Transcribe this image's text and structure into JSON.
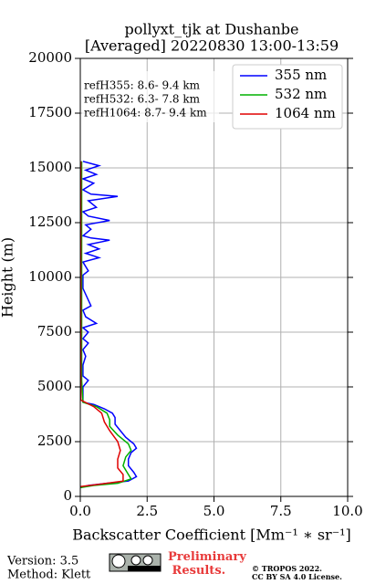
{
  "chart_data": {
    "type": "line",
    "title": "pollyxt_tjk at Dushanbe",
    "subtitle": "[Averaged] 20220830 13:00-13:59",
    "x_label": "Backscatter Coefficient [Mm⁻¹ ∗ sr⁻¹]",
    "y_label": "Height (m)",
    "annotations": [
      "refH355:  8.6- 9.4 km",
      "refH532:  6.3- 7.8 km",
      "refH1064:  8.7- 9.4 km"
    ],
    "xlim": [
      0,
      10
    ],
    "ylim": [
      0,
      20000
    ],
    "xticks": [
      {
        "value": 0,
        "label": "0.0"
      },
      2.5,
      {
        "value": 5,
        "label": "5.0"
      },
      7.5,
      {
        "value": 10,
        "label": "10.0"
      }
    ],
    "yticks": [
      0,
      2500,
      5000,
      7500,
      10000,
      12500,
      15000,
      17500,
      20000
    ],
    "grid": true,
    "legend": "upper right",
    "series": [
      {
        "name": "355 nm",
        "color": "#0000ff",
        "y": [
          15300,
          15100,
          14900,
          14700,
          14500,
          14300,
          14000,
          13800,
          13700,
          13500,
          13200,
          13000,
          12800,
          12600,
          12400,
          12200,
          11900,
          11800,
          11700,
          11500,
          11300,
          11100,
          10900,
          10700,
          10300,
          10100,
          9500,
          8700,
          8500,
          8200,
          7900,
          7700,
          7500,
          7200,
          7000,
          6700,
          6400,
          6000,
          5500,
          5300,
          5000,
          4600,
          4300,
          4200,
          4000,
          3800,
          3600,
          3300,
          3000,
          2700,
          2400,
          2200,
          2000,
          1700,
          1400,
          1100,
          900,
          700,
          600,
          500,
          400
        ],
        "x": [
          0.1,
          0.7,
          0.2,
          0.6,
          0.1,
          0.5,
          0.1,
          0.4,
          1.4,
          0.3,
          0.6,
          0.1,
          0.3,
          1.1,
          0.2,
          0.4,
          0.1,
          0.4,
          1.1,
          0.3,
          0.7,
          0.2,
          0.7,
          0.1,
          0.3,
          0.1,
          0.1,
          0.4,
          0.1,
          0.2,
          0.6,
          0.1,
          0.3,
          0.1,
          0.3,
          0.1,
          0.2,
          0.1,
          0.1,
          0.3,
          0.1,
          0.1,
          0.1,
          0.5,
          0.9,
          1.2,
          1.3,
          1.3,
          1.5,
          1.7,
          2.0,
          2.1,
          1.9,
          1.8,
          1.8,
          2.0,
          2.1,
          1.8,
          1.0,
          0.3,
          0
        ]
      },
      {
        "name": "532 nm",
        "color": "#00b000",
        "y": [
          15300,
          10000,
          5300,
          4300,
          4100,
          3800,
          3500,
          3200,
          2800,
          2400,
          2100,
          1800,
          1400,
          1000,
          800,
          600,
          500,
          400
        ],
        "x": [
          0.05,
          0.05,
          0.05,
          0.1,
          0.6,
          1.0,
          1.1,
          1.1,
          1.4,
          1.8,
          1.9,
          1.7,
          1.6,
          1.8,
          1.9,
          1.4,
          0.5,
          0
        ]
      },
      {
        "name": "1064 nm",
        "color": "#e00000",
        "y": [
          15300,
          10000,
          4400,
          4100,
          3800,
          3400,
          3000,
          2500,
          2100,
          1700,
          1300,
          1000,
          700,
          550,
          450
        ],
        "x": [
          0.02,
          0.02,
          0.02,
          0.5,
          0.8,
          0.9,
          1.1,
          1.4,
          1.5,
          1.4,
          1.4,
          1.6,
          1.6,
          0.7,
          0
        ]
      }
    ]
  },
  "footer": {
    "version": "Version: 3.5",
    "method": "Method: Klett",
    "preliminary": "Preliminary Results.",
    "copyright": "© TROPOS 2022.",
    "license": "CC BY SA 4.0 License."
  }
}
